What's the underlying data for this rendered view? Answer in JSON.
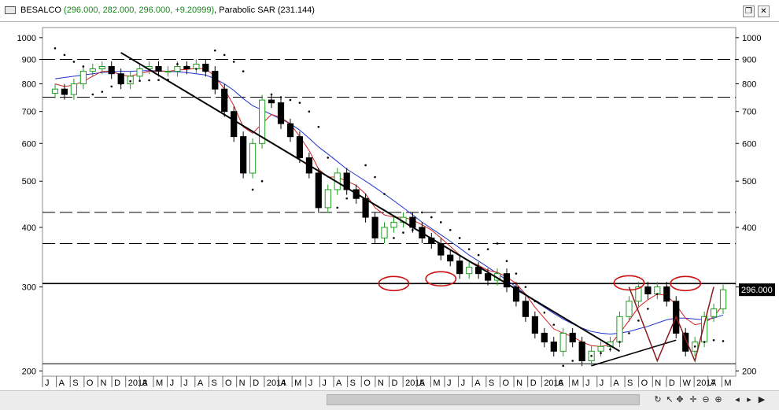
{
  "window": {
    "symbol": "BESALCO",
    "ohlc_text": "(296.000, 282.000, 296.000, +9.20999)",
    "indicator_text": ", Parabolic SAR (231.144)",
    "restore_icon": "restore-icon",
    "close_icon": "close-icon"
  },
  "colors": {
    "up_candle": "#1e9e1e",
    "down_candle": "#000000",
    "fast_ma": "#d21f1f",
    "slow_ma": "#2233cc",
    "sar_dots": "#000000",
    "trendline": "#000000",
    "annotation": "#cc1111",
    "annotation_pattern": "#8a1a1a",
    "price_tag_bg": "#000000",
    "price_tag_text": "#ffffff"
  },
  "chart_data": {
    "type": "candlestick",
    "y_scale": "log",
    "ylim": [
      195,
      1050
    ],
    "y_ticks": [
      200,
      300,
      400,
      500,
      600,
      700,
      800,
      900,
      1000
    ],
    "grid": false,
    "x_labels": [
      "J",
      "A",
      "S",
      "O",
      "N",
      "D",
      "2013",
      "A",
      "M",
      "J",
      "J",
      "A",
      "S",
      "O",
      "N",
      "D",
      "2014",
      "A",
      "M",
      "J",
      "J",
      "A",
      "S",
      "O",
      "N",
      "D",
      "2015",
      "A",
      "M",
      "J",
      "J",
      "A",
      "S",
      "O",
      "N",
      "D",
      "2016",
      "A",
      "M",
      "J",
      "J",
      "A",
      "S",
      "O",
      "N",
      "D",
      "W",
      "2017",
      "A",
      "M"
    ],
    "last_price": 296.0,
    "last_price_label": "296.000",
    "series": [
      {
        "type": "close",
        "values": [
          780,
          760,
          800,
          850,
          860,
          870,
          840,
          800,
          830,
          860,
          870,
          850,
          850,
          870,
          860,
          880,
          850,
          780,
          700,
          620,
          520,
          600,
          740,
          730,
          660,
          620,
          560,
          520,
          440,
          480,
          520,
          480,
          460,
          420,
          380,
          400,
          410,
          420,
          400,
          380,
          370,
          350,
          340,
          320,
          330,
          320,
          310,
          320,
          300,
          280,
          260,
          240,
          230,
          220,
          240,
          230,
          210,
          220,
          225,
          230,
          260,
          280,
          300,
          290,
          300,
          280,
          240,
          220,
          230,
          260,
          270,
          296
        ]
      },
      {
        "type": "fast_ma",
        "values": [
          800,
          790,
          795,
          810,
          830,
          850,
          850,
          835,
          830,
          840,
          850,
          850,
          850,
          855,
          858,
          862,
          860,
          830,
          780,
          720,
          650,
          630,
          660,
          690,
          680,
          660,
          620,
          580,
          530,
          510,
          510,
          500,
          490,
          470,
          440,
          425,
          420,
          420,
          415,
          405,
          395,
          380,
          365,
          350,
          340,
          333,
          325,
          322,
          315,
          305,
          290,
          272,
          258,
          245,
          240,
          236,
          230,
          226,
          225,
          227,
          240,
          255,
          272,
          282,
          290,
          288,
          275,
          258,
          250,
          252,
          260,
          275
        ]
      },
      {
        "type": "slow_ma",
        "values": [
          820,
          825,
          830,
          835,
          840,
          845,
          848,
          850,
          850,
          852,
          853,
          852,
          850,
          848,
          845,
          840,
          835,
          820,
          800,
          775,
          745,
          720,
          705,
          690,
          675,
          660,
          640,
          615,
          590,
          570,
          550,
          530,
          515,
          500,
          485,
          470,
          455,
          440,
          425,
          410,
          398,
          386,
          374,
          362,
          350,
          340,
          330,
          320,
          310,
          300,
          290,
          280,
          272,
          264,
          257,
          251,
          246,
          242,
          240,
          239,
          240,
          242,
          245,
          248,
          252,
          256,
          258,
          258,
          257,
          256,
          258,
          262
        ]
      },
      {
        "type": "parabolic_sar",
        "values": [
          950,
          920,
          890,
          870,
          760,
          770,
          790,
          800,
          810,
          812,
          814,
          815,
          816,
          880,
          870,
          860,
          850,
          940,
          920,
          890,
          850,
          480,
          500,
          760,
          750,
          740,
          730,
          700,
          650,
          560,
          440,
          460,
          470,
          540,
          510,
          470,
          380,
          390,
          395,
          430,
          420,
          410,
          395,
          380,
          360,
          350,
          360,
          370,
          340,
          320,
          300,
          280,
          265,
          250,
          205,
          210,
          212,
          215,
          218,
          222,
          230,
          240,
          255,
          270,
          290,
          300,
          260,
          240,
          225,
          230,
          232,
          231
        ]
      },
      {
        "type": "trendline_primary",
        "points": [
          [
            7,
            930
          ],
          [
            60,
            220
          ]
        ]
      },
      {
        "type": "trendline_secondary",
        "points": [
          [
            57,
            205
          ],
          [
            66,
            232
          ]
        ]
      },
      {
        "type": "horizontal_levels",
        "dashed": [
          900,
          750,
          430,
          370
        ],
        "solid": [
          305,
          207
        ]
      }
    ]
  }
}
